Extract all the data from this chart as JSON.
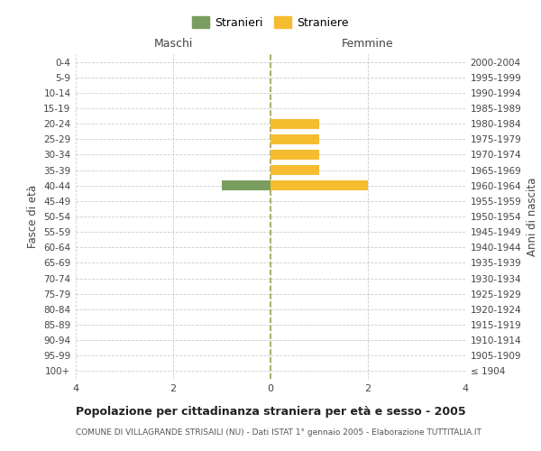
{
  "age_groups": [
    "100+",
    "95-99",
    "90-94",
    "85-89",
    "80-84",
    "75-79",
    "70-74",
    "65-69",
    "60-64",
    "55-59",
    "50-54",
    "45-49",
    "40-44",
    "35-39",
    "30-34",
    "25-29",
    "20-24",
    "15-19",
    "10-14",
    "5-9",
    "0-4"
  ],
  "birth_years": [
    "≤ 1904",
    "1905-1909",
    "1910-1914",
    "1915-1919",
    "1920-1924",
    "1925-1929",
    "1930-1934",
    "1935-1939",
    "1940-1944",
    "1945-1949",
    "1950-1954",
    "1955-1959",
    "1960-1964",
    "1965-1969",
    "1970-1974",
    "1975-1979",
    "1980-1984",
    "1985-1989",
    "1990-1994",
    "1995-1999",
    "2000-2004"
  ],
  "males": [
    0,
    0,
    0,
    0,
    0,
    0,
    0,
    0,
    0,
    0,
    0,
    0,
    1,
    0,
    0,
    0,
    0,
    0,
    0,
    0,
    0
  ],
  "females": [
    0,
    0,
    0,
    0,
    0,
    0,
    0,
    0,
    0,
    0,
    0,
    0,
    2,
    1,
    1,
    1,
    1,
    0,
    0,
    0,
    0
  ],
  "male_color": "#7a9e5f",
  "female_color": "#f5bc2f",
  "background_color": "#ffffff",
  "grid_color": "#cccccc",
  "center_line_color": "#a0a050",
  "title": "Popolazione per cittadinanza straniera per età e sesso - 2005",
  "subtitle": "COMUNE DI VILLAGRANDE STRISAILI (NU) - Dati ISTAT 1° gennaio 2005 - Elaborazione TUTTITALIA.IT",
  "header_left": "Maschi",
  "header_right": "Femmine",
  "ylabel_left": "Fasce di età",
  "ylabel_right": "Anni di nascita",
  "legend_male": "Stranieri",
  "legend_female": "Straniere",
  "xlim": 4,
  "figsize": [
    6.0,
    5.0
  ],
  "dpi": 100
}
